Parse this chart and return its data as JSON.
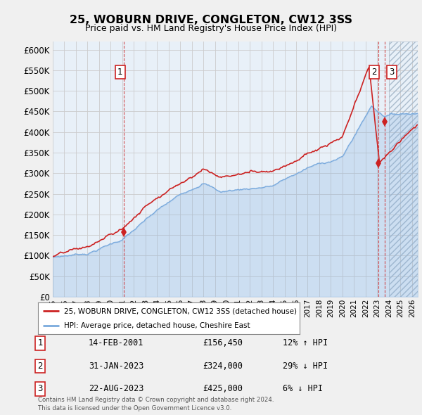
{
  "title": "25, WOBURN DRIVE, CONGLETON, CW12 3SS",
  "subtitle": "Price paid vs. HM Land Registry's House Price Index (HPI)",
  "ylim": [
    0,
    620000
  ],
  "yticks": [
    0,
    50000,
    100000,
    150000,
    200000,
    250000,
    300000,
    350000,
    400000,
    450000,
    500000,
    550000,
    600000
  ],
  "hpi_color": "#7aaadd",
  "price_color": "#cc2222",
  "grid_color": "#cccccc",
  "background_color": "#f0f0f0",
  "plot_bg_color": "#e8f0f8",
  "legend_label_price": "25, WOBURN DRIVE, CONGLETON, CW12 3SS (detached house)",
  "legend_label_hpi": "HPI: Average price, detached house, Cheshire East",
  "transactions": [
    {
      "num": 1,
      "date": "14-FEB-2001",
      "price": 156450,
      "pct": "12%",
      "dir": "↑"
    },
    {
      "num": 2,
      "date": "31-JAN-2023",
      "price": 324000,
      "pct": "29%",
      "dir": "↓"
    },
    {
      "num": 3,
      "date": "22-AUG-2023",
      "price": 425000,
      "pct": "6%",
      "dir": "↓"
    }
  ],
  "footer": "Contains HM Land Registry data © Crown copyright and database right 2024.\nThis data is licensed under the Open Government Licence v3.0.",
  "transaction_points_x": [
    2001.12,
    2023.08,
    2023.65
  ],
  "transaction_points_y": [
    156450,
    324000,
    425000
  ],
  "transaction_labels": [
    "1",
    "2",
    "3"
  ],
  "xmin": 1995.0,
  "xmax": 2026.5
}
